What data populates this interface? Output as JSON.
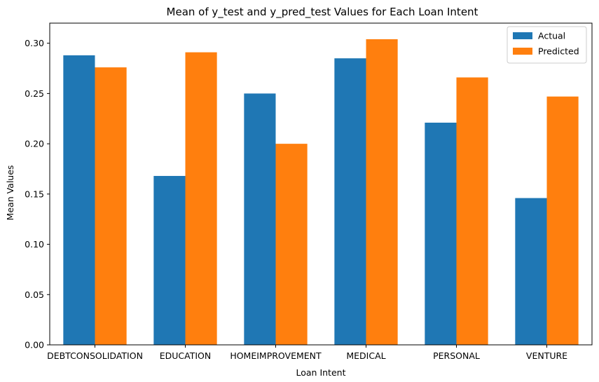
{
  "chart_data": {
    "type": "bar",
    "title": "Mean of y_test and y_pred_test Values for Each Loan Intent",
    "xlabel": "Loan Intent",
    "ylabel": "Mean Values",
    "categories": [
      "DEBTCONSOLIDATION",
      "EDUCATION",
      "HOMEIMPROVEMENT",
      "MEDICAL",
      "PERSONAL",
      "VENTURE"
    ],
    "series": [
      {
        "name": "Actual",
        "color": "#1f77b4",
        "values": [
          0.288,
          0.168,
          0.25,
          0.285,
          0.221,
          0.146
        ]
      },
      {
        "name": "Predicted",
        "color": "#ff7f0e",
        "values": [
          0.276,
          0.291,
          0.2,
          0.304,
          0.266,
          0.247
        ]
      }
    ],
    "ylim": [
      0,
      0.32
    ],
    "yticks": [
      "0.00",
      "0.05",
      "0.10",
      "0.15",
      "0.20",
      "0.25",
      "0.30"
    ],
    "legend_position": "top-right",
    "grid": false
  }
}
